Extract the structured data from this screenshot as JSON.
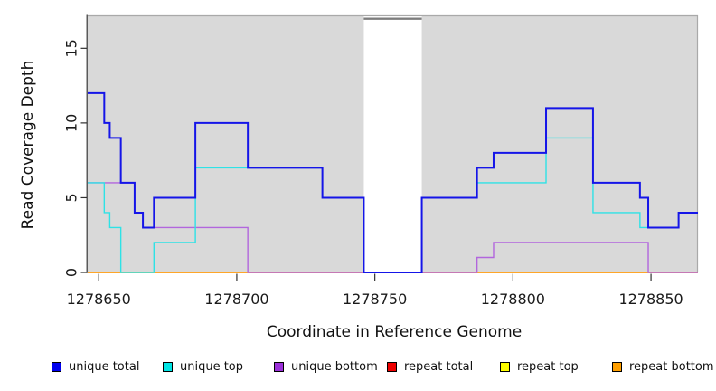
{
  "chart_data": {
    "type": "line",
    "subtype": "step-coverage-plot",
    "title": "",
    "xlabel": "Coordinate in Reference Genome",
    "ylabel": "Read Coverage Depth",
    "xlim": [
      1278646,
      1278867
    ],
    "ylim": [
      0,
      17.2
    ],
    "x_ticks": [
      1278650,
      1278700,
      1278750,
      1278800,
      1278850
    ],
    "y_ticks": [
      0,
      5,
      10,
      15
    ],
    "grid": false,
    "plot_bg_color": "#d9d9d9",
    "border_color": "#a9a9a9",
    "axis_color": "#303030",
    "tick_label_color": "#1a1a1a",
    "masked_region": {
      "start": 1278746,
      "end": 1278767,
      "fill": "#ffffff",
      "marker_color": "#7d7d7d",
      "note": "white band with dark repeat-region marker bar at top"
    },
    "legend_position": "bottom",
    "series": [
      {
        "name": "unique total",
        "color": "#1515e8",
        "legend_color": "#0000ee",
        "width": 2,
        "segments": [
          [
            1278646,
            1278652,
            12
          ],
          [
            1278652,
            1278654,
            10
          ],
          [
            1278654,
            1278658,
            9
          ],
          [
            1278658,
            1278663,
            6
          ],
          [
            1278663,
            1278666,
            4
          ],
          [
            1278666,
            1278670,
            3
          ],
          [
            1278670,
            1278685,
            5
          ],
          [
            1278685,
            1278704,
            10
          ],
          [
            1278704,
            1278731,
            7
          ],
          [
            1278731,
            1278746,
            5
          ],
          [
            1278746,
            1278767,
            0
          ],
          [
            1278767,
            1278787,
            5
          ],
          [
            1278787,
            1278793,
            7
          ],
          [
            1278793,
            1278812,
            8
          ],
          [
            1278812,
            1278829,
            11
          ],
          [
            1278829,
            1278846,
            6
          ],
          [
            1278846,
            1278849,
            5
          ],
          [
            1278849,
            1278860,
            3
          ],
          [
            1278860,
            1278867,
            4
          ]
        ]
      },
      {
        "name": "unique top",
        "color": "#2ee2e6",
        "legend_color": "#00e5e5",
        "width": 1.4,
        "segments": [
          [
            1278646,
            1278652,
            6
          ],
          [
            1278652,
            1278654,
            4
          ],
          [
            1278654,
            1278658,
            3
          ],
          [
            1278658,
            1278670,
            0
          ],
          [
            1278670,
            1278685,
            2
          ],
          [
            1278685,
            1278731,
            7
          ],
          [
            1278731,
            1278746,
            5
          ],
          [
            1278746,
            1278767,
            0
          ],
          [
            1278767,
            1278787,
            5
          ],
          [
            1278787,
            1278812,
            6
          ],
          [
            1278812,
            1278829,
            9
          ],
          [
            1278829,
            1278846,
            4
          ],
          [
            1278846,
            1278860,
            3
          ],
          [
            1278860,
            1278867,
            4
          ]
        ]
      },
      {
        "name": "unique bottom",
        "color": "#b266dd",
        "legend_color": "#9b30d9",
        "width": 1.4,
        "segments": [
          [
            1278646,
            1278663,
            6
          ],
          [
            1278663,
            1278666,
            4
          ],
          [
            1278666,
            1278704,
            3
          ],
          [
            1278704,
            1278787,
            0
          ],
          [
            1278787,
            1278793,
            1
          ],
          [
            1278793,
            1278849,
            2
          ],
          [
            1278849,
            1278867,
            0
          ]
        ]
      },
      {
        "name": "repeat total",
        "color": "#e01717",
        "legend_color": "#ee0000",
        "width": 1.3,
        "segments": [
          [
            1278646,
            1278867,
            0
          ]
        ]
      },
      {
        "name": "repeat top",
        "color": "#ffff00",
        "legend_color": "#ffff00",
        "width": 1.3,
        "segments": [
          [
            1278646,
            1278867,
            0
          ]
        ]
      },
      {
        "name": "repeat bottom",
        "color": "#ff9f1a",
        "legend_color": "#ff9f00",
        "width": 1.8,
        "segments": [
          [
            1278646,
            1278867,
            0
          ]
        ]
      }
    ]
  }
}
